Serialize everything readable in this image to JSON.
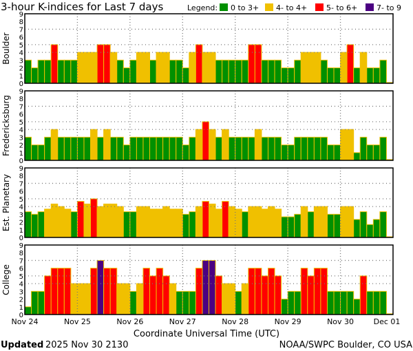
{
  "chart_data": {
    "type": "bar",
    "title": "3-hour K-indices for Last 7 days",
    "legend_label": "Legend:",
    "legend": [
      {
        "label": "0 to 3+",
        "color": "#009000"
      },
      {
        "label": "4- to 4+",
        "color": "#f0c000"
      },
      {
        "label": "5- to 6+",
        "color": "#ff0000"
      },
      {
        "label": "7- to 9",
        "color": "#4b0082"
      }
    ],
    "xlabel": "Coordinate Universal Time (UTC)",
    "x_ticks": [
      "Nov 24",
      "Nov 25",
      "Nov 26",
      "Nov 27",
      "Nov 28",
      "Nov 29",
      "Nov 30",
      "Dec 01"
    ],
    "y_ticks": [
      "0",
      "1",
      "2",
      "3",
      "4",
      "5",
      "6",
      "7",
      "8",
      "9"
    ],
    "ylim": [
      0,
      9
    ],
    "gridlines_y": [
      4,
      5,
      7
    ],
    "bars_per_day": 8,
    "panels": [
      {
        "name": "Boulder",
        "values": [
          3,
          2,
          3,
          3,
          5,
          3,
          3,
          3,
          4,
          4,
          4,
          5,
          5,
          4,
          3,
          2,
          3,
          4,
          4,
          3,
          4,
          4,
          3,
          3,
          2,
          4,
          5,
          4,
          4,
          3,
          3,
          3,
          3,
          3,
          5,
          5,
          3,
          3,
          3,
          2,
          2,
          3,
          4,
          4,
          4,
          3,
          2,
          2,
          4,
          5,
          2,
          4,
          2,
          2,
          3,
          0.1
        ]
      },
      {
        "name": "Fredericksburg",
        "values": [
          3,
          2,
          2,
          3,
          4,
          3,
          3,
          3,
          3,
          3,
          4,
          3,
          4,
          3,
          3,
          2,
          3,
          3,
          3,
          3,
          3,
          3,
          3,
          3,
          2,
          3,
          4,
          5,
          4,
          3,
          4,
          3,
          3,
          3,
          3,
          4,
          3,
          3,
          3,
          2,
          2,
          3,
          3,
          3,
          3,
          3,
          2,
          2,
          4,
          4,
          1,
          3,
          2,
          2,
          3,
          0.1
        ]
      },
      {
        "name": "Est. Planetary",
        "values": [
          3.33,
          3,
          3.33,
          3.67,
          4.33,
          4,
          3.67,
          3.33,
          4.67,
          4.33,
          5,
          4,
          4.33,
          4.33,
          4,
          3.33,
          3.33,
          4,
          4,
          3.67,
          3.67,
          4,
          3.67,
          3.67,
          3,
          3.33,
          4,
          4.67,
          4.33,
          3.67,
          4.67,
          4,
          3.67,
          3.33,
          4,
          4,
          3.67,
          4,
          3.67,
          2.67,
          2.67,
          3,
          4,
          3.33,
          4,
          4,
          3,
          3,
          4,
          4,
          2.33,
          3.33,
          1.67,
          2.33,
          3.33,
          0
        ]
      },
      {
        "name": "College",
        "values": [
          1,
          3,
          3,
          5,
          6,
          6,
          6,
          4,
          4,
          4,
          6,
          7,
          6,
          6,
          4,
          4,
          3,
          4,
          6,
          5,
          6,
          5,
          4,
          3,
          3,
          3,
          6,
          7,
          7,
          5,
          4,
          4,
          3,
          4,
          6,
          6,
          5,
          6,
          5,
          2,
          3,
          3,
          6,
          5,
          6,
          6,
          3,
          3,
          3,
          3,
          2,
          5,
          3,
          3,
          3,
          0.1
        ]
      }
    ]
  },
  "footer": {
    "updated_label": "Updated",
    "updated_value": "2025 Nov 30 2130",
    "source": "NOAA/SWPC Boulder, CO USA"
  }
}
